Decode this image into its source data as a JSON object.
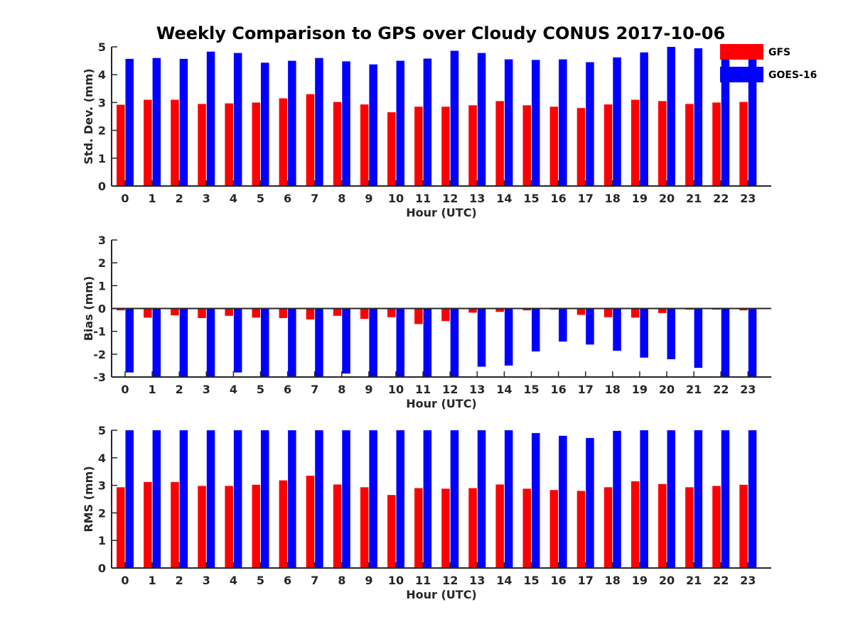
{
  "title": "Weekly Comparison to GPS over Cloudy CONUS 2017-10-06",
  "legend": [
    {
      "name": "GFS",
      "color": "#ff0000"
    },
    {
      "name": "GOES-16",
      "color": "#0000ff"
    }
  ],
  "legend_position": "top-right",
  "chart_data": [
    {
      "type": "bar",
      "ylabel": "Std. Dev. (mm)",
      "xlabel": "Hour (UTC)",
      "ylim": [
        0,
        5
      ],
      "yticks": [
        0,
        1,
        2,
        3,
        4,
        5
      ],
      "categories": [
        "0",
        "1",
        "2",
        "3",
        "4",
        "5",
        "6",
        "7",
        "8",
        "9",
        "10",
        "11",
        "12",
        "13",
        "14",
        "15",
        "16",
        "17",
        "18",
        "19",
        "20",
        "21",
        "22",
        "23"
      ],
      "series": [
        {
          "name": "GFS",
          "color": "#ff0000",
          "values": [
            2.92,
            3.1,
            3.1,
            2.95,
            2.97,
            3.0,
            3.15,
            3.3,
            3.02,
            2.93,
            2.65,
            2.85,
            2.85,
            2.9,
            3.05,
            2.9,
            2.85,
            2.8,
            2.93,
            3.1,
            3.05,
            2.95,
            3.0,
            3.02
          ]
        },
        {
          "name": "GOES-16",
          "color": "#0000ff",
          "values": [
            4.57,
            4.6,
            4.57,
            4.83,
            4.78,
            4.43,
            4.5,
            4.6,
            4.48,
            4.37,
            4.5,
            4.58,
            4.86,
            4.78,
            4.55,
            4.53,
            4.55,
            4.45,
            4.62,
            4.8,
            5.0,
            4.95,
            5.0,
            5.0
          ]
        }
      ]
    },
    {
      "type": "bar",
      "ylabel": "Bias (mm)",
      "xlabel": "Hour (UTC)",
      "ylim": [
        -3,
        3
      ],
      "yticks": [
        -3,
        -2,
        -1,
        0,
        1,
        2,
        3
      ],
      "categories": [
        "0",
        "1",
        "2",
        "3",
        "4",
        "5",
        "6",
        "7",
        "8",
        "9",
        "10",
        "11",
        "12",
        "13",
        "14",
        "15",
        "16",
        "17",
        "18",
        "19",
        "20",
        "21",
        "22",
        "23"
      ],
      "series": [
        {
          "name": "GFS",
          "color": "#ff0000",
          "values": [
            -0.08,
            -0.4,
            -0.3,
            -0.42,
            -0.32,
            -0.4,
            -0.42,
            -0.48,
            -0.32,
            -0.45,
            -0.38,
            -0.68,
            -0.55,
            -0.18,
            -0.15,
            -0.08,
            -0.05,
            -0.28,
            -0.38,
            -0.4,
            -0.2,
            -0.05,
            -0.05,
            -0.08
          ]
        },
        {
          "name": "GOES-16",
          "color": "#0000ff",
          "values": [
            -2.8,
            -3.0,
            -3.0,
            -3.0,
            -2.8,
            -3.0,
            -3.0,
            -3.0,
            -2.85,
            -3.0,
            -3.0,
            -3.0,
            -3.0,
            -2.55,
            -2.5,
            -1.88,
            -1.45,
            -1.58,
            -1.85,
            -2.15,
            -2.22,
            -2.6,
            -3.0,
            -3.0
          ]
        }
      ]
    },
    {
      "type": "bar",
      "ylabel": "RMS (mm)",
      "xlabel": "Hour (UTC)",
      "ylim": [
        0,
        5
      ],
      "yticks": [
        0,
        1,
        2,
        3,
        4,
        5
      ],
      "categories": [
        "0",
        "1",
        "2",
        "3",
        "4",
        "5",
        "6",
        "7",
        "8",
        "9",
        "10",
        "11",
        "12",
        "13",
        "14",
        "15",
        "16",
        "17",
        "18",
        "19",
        "20",
        "21",
        "22",
        "23"
      ],
      "series": [
        {
          "name": "GFS",
          "color": "#ff0000",
          "values": [
            2.93,
            3.12,
            3.12,
            2.98,
            2.98,
            3.02,
            3.18,
            3.35,
            3.03,
            2.93,
            2.65,
            2.9,
            2.88,
            2.9,
            3.03,
            2.88,
            2.83,
            2.8,
            2.93,
            3.15,
            3.05,
            2.93,
            2.98,
            3.02
          ]
        },
        {
          "name": "GOES-16",
          "color": "#0000ff",
          "values": [
            5.0,
            5.0,
            5.0,
            5.0,
            5.0,
            5.0,
            5.0,
            5.0,
            5.0,
            5.0,
            5.0,
            5.0,
            5.0,
            5.0,
            5.0,
            4.9,
            4.8,
            4.72,
            4.98,
            5.0,
            5.0,
            5.0,
            5.0,
            5.0
          ]
        }
      ]
    }
  ]
}
